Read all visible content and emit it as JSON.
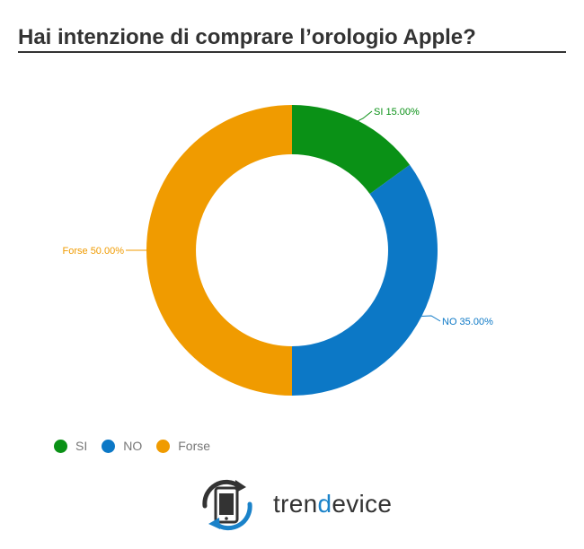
{
  "title": "Hai intenzione di comprare l’orologio Apple?",
  "chart_data": {
    "type": "pie",
    "title": "Hai intenzione di comprare l’orologio Apple?",
    "donut": true,
    "slices": [
      {
        "label": "SI",
        "value": 15.0,
        "data_label": "SI 15.00%",
        "color": "#0a9116"
      },
      {
        "label": "NO",
        "value": 35.0,
        "data_label": "NO 35.00%",
        "color": "#0c78c6"
      },
      {
        "label": "Forse",
        "value": 50.0,
        "data_label": "Forse 50.00%",
        "color": "#f09b00"
      }
    ],
    "legend": {
      "position": "bottom-left",
      "entries": [
        "SI",
        "NO",
        "Forse"
      ]
    }
  },
  "legend": {
    "items": [
      {
        "label": "SI",
        "color": "#0a9116"
      },
      {
        "label": "NO",
        "color": "#0c78c6"
      },
      {
        "label": "Forse",
        "color": "#f09b00"
      }
    ]
  },
  "logo": {
    "prefix": "tren",
    "accent": "d",
    "suffix": "evice",
    "accent_color": "#1a82c9",
    "icon": "phone-refresh-icon"
  }
}
